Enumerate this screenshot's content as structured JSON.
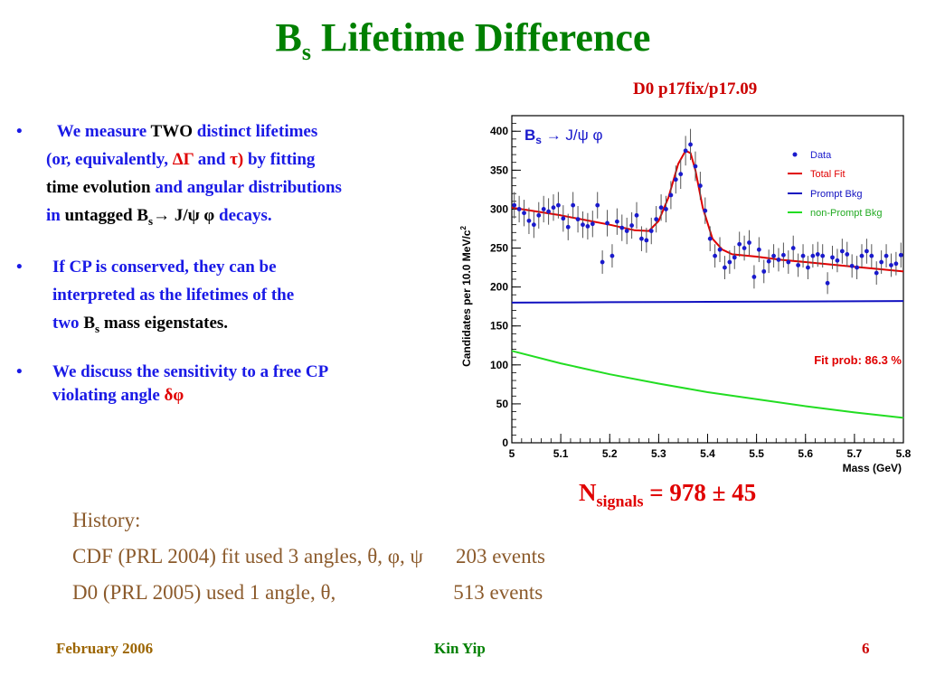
{
  "slide": {
    "title_main": "B",
    "title_sub": "s",
    "title_rest": " Lifetime Difference",
    "subtitle": "D0 p17fix/p17.09",
    "bullets": {
      "b1_l1a": "We measure ",
      "b1_l1b": "TWO",
      "b1_l1c": " distinct lifetimes",
      "b1_l2a": "(or, equivalently, ",
      "b1_l2b": "ΔΓ",
      "b1_l2c": " and ",
      "b1_l2d": "τ)",
      "b1_l2e": "  by fitting",
      "b1_l3a": "time evolution ",
      "b1_l3b": "and angular distributions",
      "b1_l4a": "in ",
      "b1_l4b": " untagged B",
      "b1_l4sub": "s",
      "b1_l4c": "→ J/ψ φ",
      "b1_l4d": " decays.",
      "b2_l1": "If CP is conserved,  they can be",
      "b2_l2": "interpreted as the lifetimes of the",
      "b2_l3a": "two ",
      "b2_l3b": "B",
      "b2_l3sub": "s",
      "b2_l3c": " mass eigenstates.",
      "b3_l1": "We discuss the sensitivity to  a free CP",
      "b3_l2a": "violating angle ",
      "b3_l2b": "δφ"
    },
    "signals_main": "N",
    "signals_sub": "signals",
    "signals_rest": " = 978 ± 45",
    "history": {
      "h1": "History:",
      "h2a": "CDF (PRL 2004) fit used 3 angles, θ, φ, ψ",
      "h2b": "203 events",
      "h3a": "D0     (PRL 2005) used 1 angle,  θ,",
      "h3b": "513 events"
    },
    "footer": {
      "left": "February 2006",
      "center": "Kin Yip",
      "right": "6"
    }
  },
  "chart_data": {
    "type": "scatter",
    "title": "B_s → J/ψ φ",
    "title_main": "B",
    "title_sub": "s",
    "title_rest": " → J/ψ φ",
    "xlabel": "Mass  (GeV)",
    "ylabel": "Candidates per 10.0 MeV/c",
    "ylabel_sup": "2",
    "xlim": [
      5.0,
      5.8
    ],
    "ylim": [
      0,
      420
    ],
    "x_ticks": [
      "5",
      "5.1",
      "5.2",
      "5.3",
      "5.4",
      "5.5",
      "5.6",
      "5.7",
      "5.8"
    ],
    "y_ticks": [
      "0",
      "50",
      "100",
      "150",
      "200",
      "250",
      "300",
      "350",
      "400"
    ],
    "legend_position": "top-right",
    "legend": [
      "Data",
      "Total Fit",
      "Prompt Bkg",
      "non-Prompt Bkg"
    ],
    "annotation": "Fit prob: 86.3 %",
    "colors": {
      "data": "#1a1acc",
      "total_fit": "#e00000",
      "prompt": "#1010c0",
      "nonprompt": "#22dd22",
      "annotation": "#e00000"
    },
    "series": [
      {
        "name": "Data",
        "x": [
          5.005,
          5.015,
          5.025,
          5.035,
          5.045,
          5.055,
          5.065,
          5.075,
          5.085,
          5.095,
          5.105,
          5.115,
          5.125,
          5.135,
          5.145,
          5.155,
          5.165,
          5.175,
          5.185,
          5.195,
          5.205,
          5.215,
          5.225,
          5.235,
          5.245,
          5.255,
          5.265,
          5.275,
          5.285,
          5.295,
          5.305,
          5.315,
          5.325,
          5.335,
          5.345,
          5.355,
          5.365,
          5.375,
          5.385,
          5.395,
          5.405,
          5.415,
          5.425,
          5.435,
          5.445,
          5.455,
          5.465,
          5.475,
          5.485,
          5.495,
          5.505,
          5.515,
          5.525,
          5.535,
          5.545,
          5.555,
          5.565,
          5.575,
          5.585,
          5.595,
          5.605,
          5.615,
          5.625,
          5.635,
          5.645,
          5.655,
          5.665,
          5.675,
          5.685,
          5.695,
          5.705,
          5.715,
          5.725,
          5.735,
          5.745,
          5.755,
          5.765,
          5.775,
          5.785,
          5.795
        ],
        "y": [
          305,
          300,
          295,
          285,
          280,
          292,
          300,
          297,
          302,
          305,
          288,
          277,
          305,
          287,
          280,
          278,
          281,
          305,
          232,
          282,
          240,
          284,
          276,
          272,
          279,
          292,
          262,
          260,
          272,
          287,
          302,
          300,
          318,
          338,
          345,
          375,
          383,
          355,
          330,
          298,
          262,
          240,
          248,
          225,
          232,
          238,
          255,
          250,
          257,
          213,
          248,
          220,
          233,
          240,
          235,
          241,
          232,
          250,
          228,
          240,
          225,
          240,
          242,
          240,
          205,
          238,
          234,
          246,
          242,
          227,
          225,
          240,
          246,
          240,
          218,
          232,
          240,
          228,
          230,
          241
        ],
        "err": [
          17,
          17,
          17,
          17,
          17,
          17,
          17,
          17,
          17,
          17,
          17,
          17,
          17,
          17,
          17,
          17,
          17,
          17,
          15,
          17,
          15,
          17,
          17,
          17,
          17,
          17,
          16,
          16,
          17,
          17,
          17,
          17,
          18,
          18,
          19,
          19,
          20,
          19,
          18,
          17,
          16,
          15,
          16,
          15,
          15,
          15,
          16,
          16,
          16,
          15,
          16,
          15,
          15,
          15,
          15,
          16,
          15,
          16,
          15,
          15,
          15,
          15,
          16,
          15,
          14,
          15,
          15,
          16,
          16,
          15,
          15,
          15,
          16,
          15,
          15,
          15,
          15,
          15,
          15,
          16
        ]
      },
      {
        "name": "Total Fit",
        "x": [
          5.0,
          5.05,
          5.1,
          5.15,
          5.2,
          5.25,
          5.28,
          5.3,
          5.32,
          5.34,
          5.355,
          5.365,
          5.375,
          5.39,
          5.41,
          5.43,
          5.45,
          5.5,
          5.55,
          5.6,
          5.65,
          5.7,
          5.75,
          5.8
        ],
        "y": [
          302,
          297,
          292,
          286,
          280,
          273,
          272,
          285,
          315,
          358,
          375,
          372,
          350,
          302,
          262,
          248,
          242,
          239,
          235,
          232,
          229,
          226,
          223,
          220
        ]
      },
      {
        "name": "Prompt Bkg",
        "x": [
          5.0,
          5.2,
          5.4,
          5.6,
          5.8
        ],
        "y": [
          180,
          180.5,
          181,
          181.5,
          182
        ]
      },
      {
        "name": "non-Prompt Bkg",
        "x": [
          5.0,
          5.1,
          5.2,
          5.3,
          5.4,
          5.5,
          5.6,
          5.7,
          5.8
        ],
        "y": [
          118,
          102,
          88,
          76,
          65,
          56,
          47,
          39,
          32
        ]
      }
    ]
  }
}
